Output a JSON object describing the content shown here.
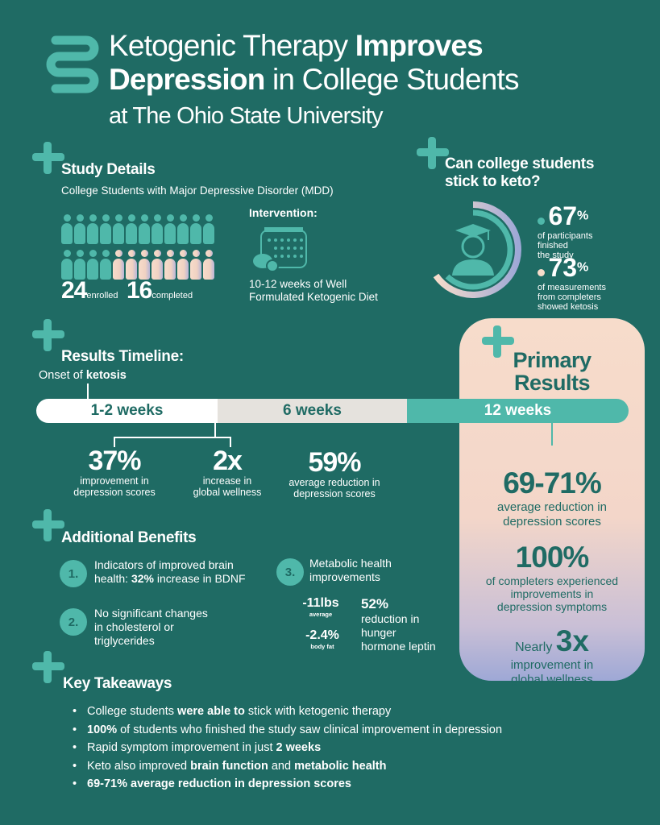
{
  "header": {
    "title_part1": "Ketogenic Therapy ",
    "title_bold1": "Improves",
    "title_bold2": "Depression",
    "title_part2": " in College Students",
    "subtitle": "at The Ohio State University",
    "logo_icon": "intestine-icon"
  },
  "study": {
    "heading": "Study Details",
    "population": "College Students with Major Depressive Disorder (MDD)",
    "enrolled": 24,
    "enrolled_label": "enrolled",
    "completed": 16,
    "completed_label": "completed",
    "intervention_heading": "Intervention:",
    "intervention_text_1": "10-12 weeks of Well",
    "intervention_text_2": "Formulated Ketogenic Diet",
    "intervention_icon": "calendar-food-icon"
  },
  "adherence": {
    "heading_1": "Can college students",
    "heading_2": "stick to keto?",
    "stat1_value": "67",
    "stat1_unit": "%",
    "stat1_l1": "of participants",
    "stat1_l2": "finished",
    "stat1_l3": "the study",
    "stat2_value": "73",
    "stat2_unit": "%",
    "stat2_l1": "of measurements",
    "stat2_l2": "from completers",
    "stat2_l3": "showed ketosis",
    "icon": "graduate-student-icon"
  },
  "timeline": {
    "heading": "Results Timeline:",
    "onset_prefix": "Onset of ",
    "onset_bold": "ketosis",
    "segments": [
      "1-2 weeks",
      "6 weeks",
      "12 weeks"
    ],
    "stats": [
      {
        "value": "37%",
        "l1": "improvement in",
        "l2": "depression scores"
      },
      {
        "value": "2x",
        "l1": "increase in",
        "l2": "global wellness"
      },
      {
        "value": "59%",
        "l1": "average reduction in",
        "l2": "depression scores"
      }
    ]
  },
  "primary": {
    "heading_1": "Primary",
    "heading_2": "Results",
    "r1_value": "69-71%",
    "r1_l1": "average reduction in",
    "r1_l2": "depression scores",
    "r2_value": "100%",
    "r2_l1": "of completers experienced",
    "r2_l2": "improvements in",
    "r2_l3": "depression symptoms",
    "r3_prefix": "Nearly ",
    "r3_value": "3x",
    "r3_l1": "improvement in",
    "r3_l2": "global wellness"
  },
  "benefits": {
    "heading": "Additional Benefits",
    "b1_num": "1.",
    "b1_l1": "Indicators of improved brain",
    "b1_l2a": "health: ",
    "b1_l2b": "32%",
    "b1_l2c": " increase in BDNF",
    "b2_num": "2.",
    "b2_l1": "No significant changes",
    "b2_l2": "in cholesterol or",
    "b2_l3": "triglycerides",
    "b3_num": "3.",
    "b3_l1": "Metabolic health",
    "b3_l2": "improvements",
    "weight": "-11lbs",
    "weight_label": "average",
    "fat": "-2.4%",
    "fat_label": "body fat",
    "leptin": "52%",
    "leptin_l1": "reduction in",
    "leptin_l2": "hunger",
    "leptin_l3": "hormone leptin"
  },
  "takeaways": {
    "heading": "Key Takeaways",
    "t1a": "College students ",
    "t1b": "were able to",
    "t1c": " stick with ketogenic therapy",
    "t2b": "100%",
    "t2c": " of students who finished the study saw clinical improvement in depression",
    "t3a": "Rapid symptom improvement in just ",
    "t3b": "2 weeks",
    "t4a": "Keto also improved ",
    "t4b": "brain function",
    "t4c": " and ",
    "t4d": "metabolic health",
    "t5b": "69-71% average reduction in depression scores"
  },
  "colors": {
    "background": "#1f6b64",
    "accent": "#4fb8aa",
    "peach": "#f7dccb",
    "lavender": "#9ea8d6"
  }
}
